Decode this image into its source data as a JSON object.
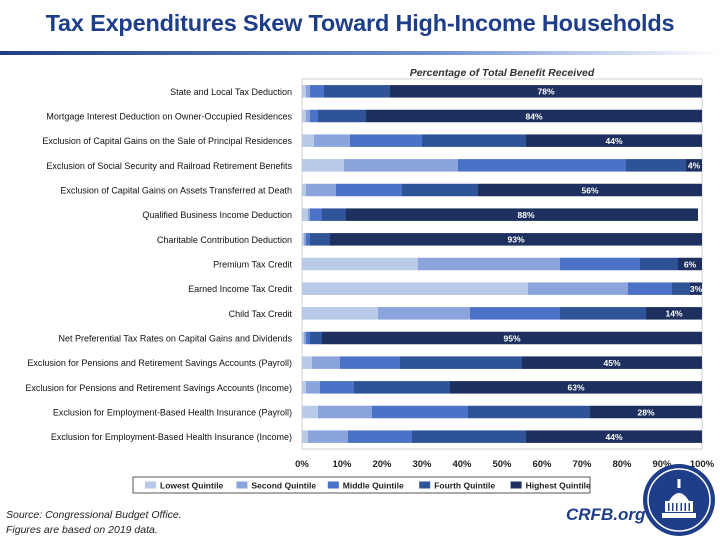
{
  "title": "Tax Expenditures Skew Toward High-Income Households",
  "source_line1": "Source: Congressional Budget Office.",
  "source_line2": "Figures are based on 2019 data.",
  "brand": "CRFB.org",
  "colors": {
    "title": "#1e3e8a",
    "series": [
      "#b9c9e8",
      "#8ba5dc",
      "#4a72c7",
      "#2e5396",
      "#1d305f"
    ]
  },
  "chart_data": {
    "type": "bar",
    "orientation": "horizontal",
    "stacked": true,
    "title": "Percentage of Total Benefit Received",
    "xlim": [
      0,
      100
    ],
    "x_ticks": [
      "0%",
      "10%",
      "20%",
      "30%",
      "40%",
      "50%",
      "60%",
      "70%",
      "80%",
      "90%",
      "100%"
    ],
    "grid": false,
    "legend_position": "bottom",
    "categories": [
      "State and Local Tax Deduction",
      "Mortgage Interest Deduction on Owner-Occupied Residences",
      "Exclusion of Capital Gains on the Sale of Principal Residences",
      "Exclusion of Social Security and Railroad Retirement Benefits",
      "Exclusion of Capital Gains on Assets Transferred at Death",
      "Qualified Business Income Deduction",
      "Charitable Contribution Deduction",
      "Premium Tax Credit",
      "Earned Income Tax Credit",
      "Child Tax Credit",
      "Net Preferential Tax Rates on Capital Gains and Dividends",
      "Exclusion for Pensions and Retirement Savings Accounts (Payroll)",
      "Exclusion for Pensions and Retirement Savings Accounts (Income)",
      "Exclusion for Employment-Based Health Insurance (Payroll)",
      "Exclusion for Employment-Based Health Insurance (Income)"
    ],
    "series": [
      {
        "name": "Lowest Quintile",
        "values": [
          1,
          1,
          3,
          10.5,
          1,
          1.5,
          0.5,
          29,
          56.5,
          19,
          0.5,
          2.5,
          1,
          4,
          1.5
        ]
      },
      {
        "name": "Second Quintile",
        "values": [
          1,
          1,
          9,
          28.5,
          7.5,
          0.5,
          0.5,
          35.5,
          25,
          23,
          0.5,
          7,
          3.5,
          13.5,
          10
        ]
      },
      {
        "name": "Middle Quintile",
        "values": [
          3.5,
          2,
          18,
          42,
          16.5,
          3,
          1,
          20,
          11,
          22.5,
          1,
          15,
          8.5,
          24,
          16
        ]
      },
      {
        "name": "Fourth Quintile",
        "values": [
          16.5,
          12,
          26,
          15,
          19,
          6,
          5,
          9.5,
          4.5,
          21.5,
          3,
          30.5,
          24,
          30.5,
          28.5
        ]
      },
      {
        "name": "Highest Quintile",
        "values": [
          78,
          84,
          44,
          4,
          56,
          88,
          93,
          6,
          3,
          14,
          95,
          45,
          63,
          28,
          44
        ]
      }
    ],
    "data_labels": [
      "78%",
      "84%",
      "44%",
      "4%",
      "56%",
      "88%",
      "93%",
      "6%",
      "3%",
      "14%",
      "95%",
      "45%",
      "63%",
      "28%",
      "44%"
    ]
  }
}
